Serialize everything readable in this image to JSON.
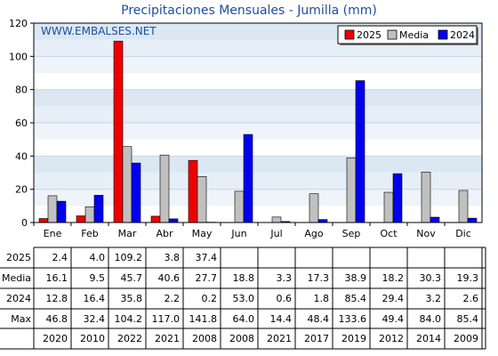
{
  "chart_data": {
    "type": "bar",
    "title": "Precipitaciones Mensuales - Jumilla (mm)",
    "watermark": "WWW.EMBALSES.NET",
    "categories": [
      "Ene",
      "Feb",
      "Mar",
      "Abr",
      "May",
      "Jun",
      "Jul",
      "Ago",
      "Sep",
      "Oct",
      "Nov",
      "Dic"
    ],
    "ylim": [
      0,
      120
    ],
    "yticks": [
      0,
      20,
      40,
      60,
      80,
      100,
      120
    ],
    "grid": "horizontal",
    "legend_position": "top-right",
    "series": [
      {
        "name": "2025",
        "color": "#ee0000",
        "values": [
          2.4,
          4.0,
          109.2,
          3.8,
          37.4,
          null,
          null,
          null,
          null,
          null,
          null,
          null
        ]
      },
      {
        "name": "Media",
        "color": "#c0c0c0",
        "values": [
          16.1,
          9.5,
          45.7,
          40.6,
          27.7,
          18.8,
          3.3,
          17.3,
          38.9,
          18.2,
          30.3,
          19.3
        ]
      },
      {
        "name": "2024",
        "color": "#0000ee",
        "values": [
          12.8,
          16.4,
          35.8,
          2.2,
          0.2,
          53.0,
          0.6,
          1.8,
          85.4,
          29.4,
          3.2,
          2.6
        ]
      }
    ],
    "table": {
      "rows": [
        {
          "label": "2025",
          "cells": [
            "2.4",
            "4.0",
            "109.2",
            "3.8",
            "37.4",
            "",
            "",
            "",
            "",
            "",
            "",
            ""
          ]
        },
        {
          "label": "Media",
          "cells": [
            "16.1",
            "9.5",
            "45.7",
            "40.6",
            "27.7",
            "18.8",
            "3.3",
            "17.3",
            "38.9",
            "18.2",
            "30.3",
            "19.3"
          ]
        },
        {
          "label": "2024",
          "cells": [
            "12.8",
            "16.4",
            "35.8",
            "2.2",
            "0.2",
            "53.0",
            "0.6",
            "1.8",
            "85.4",
            "29.4",
            "3.2",
            "2.6"
          ]
        },
        {
          "label": "Max",
          "cells": [
            "46.8",
            "32.4",
            "104.2",
            "117.0",
            "141.8",
            "64.0",
            "14.4",
            "48.4",
            "133.6",
            "49.4",
            "84.0",
            "85.4"
          ]
        },
        {
          "label": "",
          "cells": [
            "2020",
            "2010",
            "2022",
            "2021",
            "2008",
            "2008",
            "2021",
            "2017",
            "2019",
            "2012",
            "2014",
            "2009"
          ]
        }
      ]
    }
  }
}
